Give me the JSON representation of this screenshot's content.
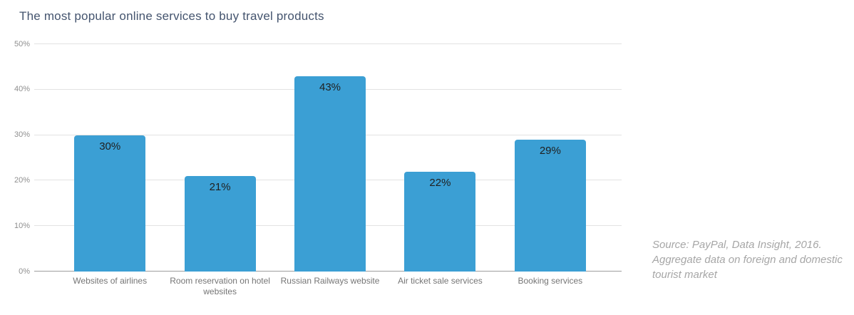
{
  "title": "The most popular online services to buy travel products",
  "source_note": "Source: PayPal, Data Insight, 2016. Aggregate data on foreign and domestic tourist market",
  "colors": {
    "background": "#ffffff",
    "bar": "#3b9fd4",
    "title": "#44546e",
    "grid": "#e2e2e2",
    "axis_line": "#9e9e9e",
    "tick_label": "#8f8f8f",
    "category_label": "#757575",
    "value_label": "#1f1f1f",
    "source_text": "#a6a6a6"
  },
  "chart_data": {
    "type": "bar",
    "title": "The most popular online services to buy travel products",
    "categories": [
      "Websites of airlines",
      "Room reservation on hotel websites",
      "Russian Railways website",
      "Air ticket sale services",
      "Booking services"
    ],
    "values": [
      30,
      21,
      43,
      22,
      29
    ],
    "value_labels": [
      "30%",
      "21%",
      "43%",
      "22%",
      "29%"
    ],
    "xlabel": "",
    "ylabel": "",
    "ylim": [
      0,
      50
    ],
    "yticks": [
      {
        "value": 0,
        "label": "0%"
      },
      {
        "value": 10,
        "label": "10%"
      },
      {
        "value": 20,
        "label": "20%"
      },
      {
        "value": 30,
        "label": "30%"
      },
      {
        "value": 40,
        "label": "40%"
      },
      {
        "value": 50,
        "label": "50%"
      }
    ],
    "grid": "horizontal",
    "legend": "none",
    "annotation": "Source: PayPal, Data Insight, 2016. Aggregate data on foreign and domestic tourist market"
  }
}
